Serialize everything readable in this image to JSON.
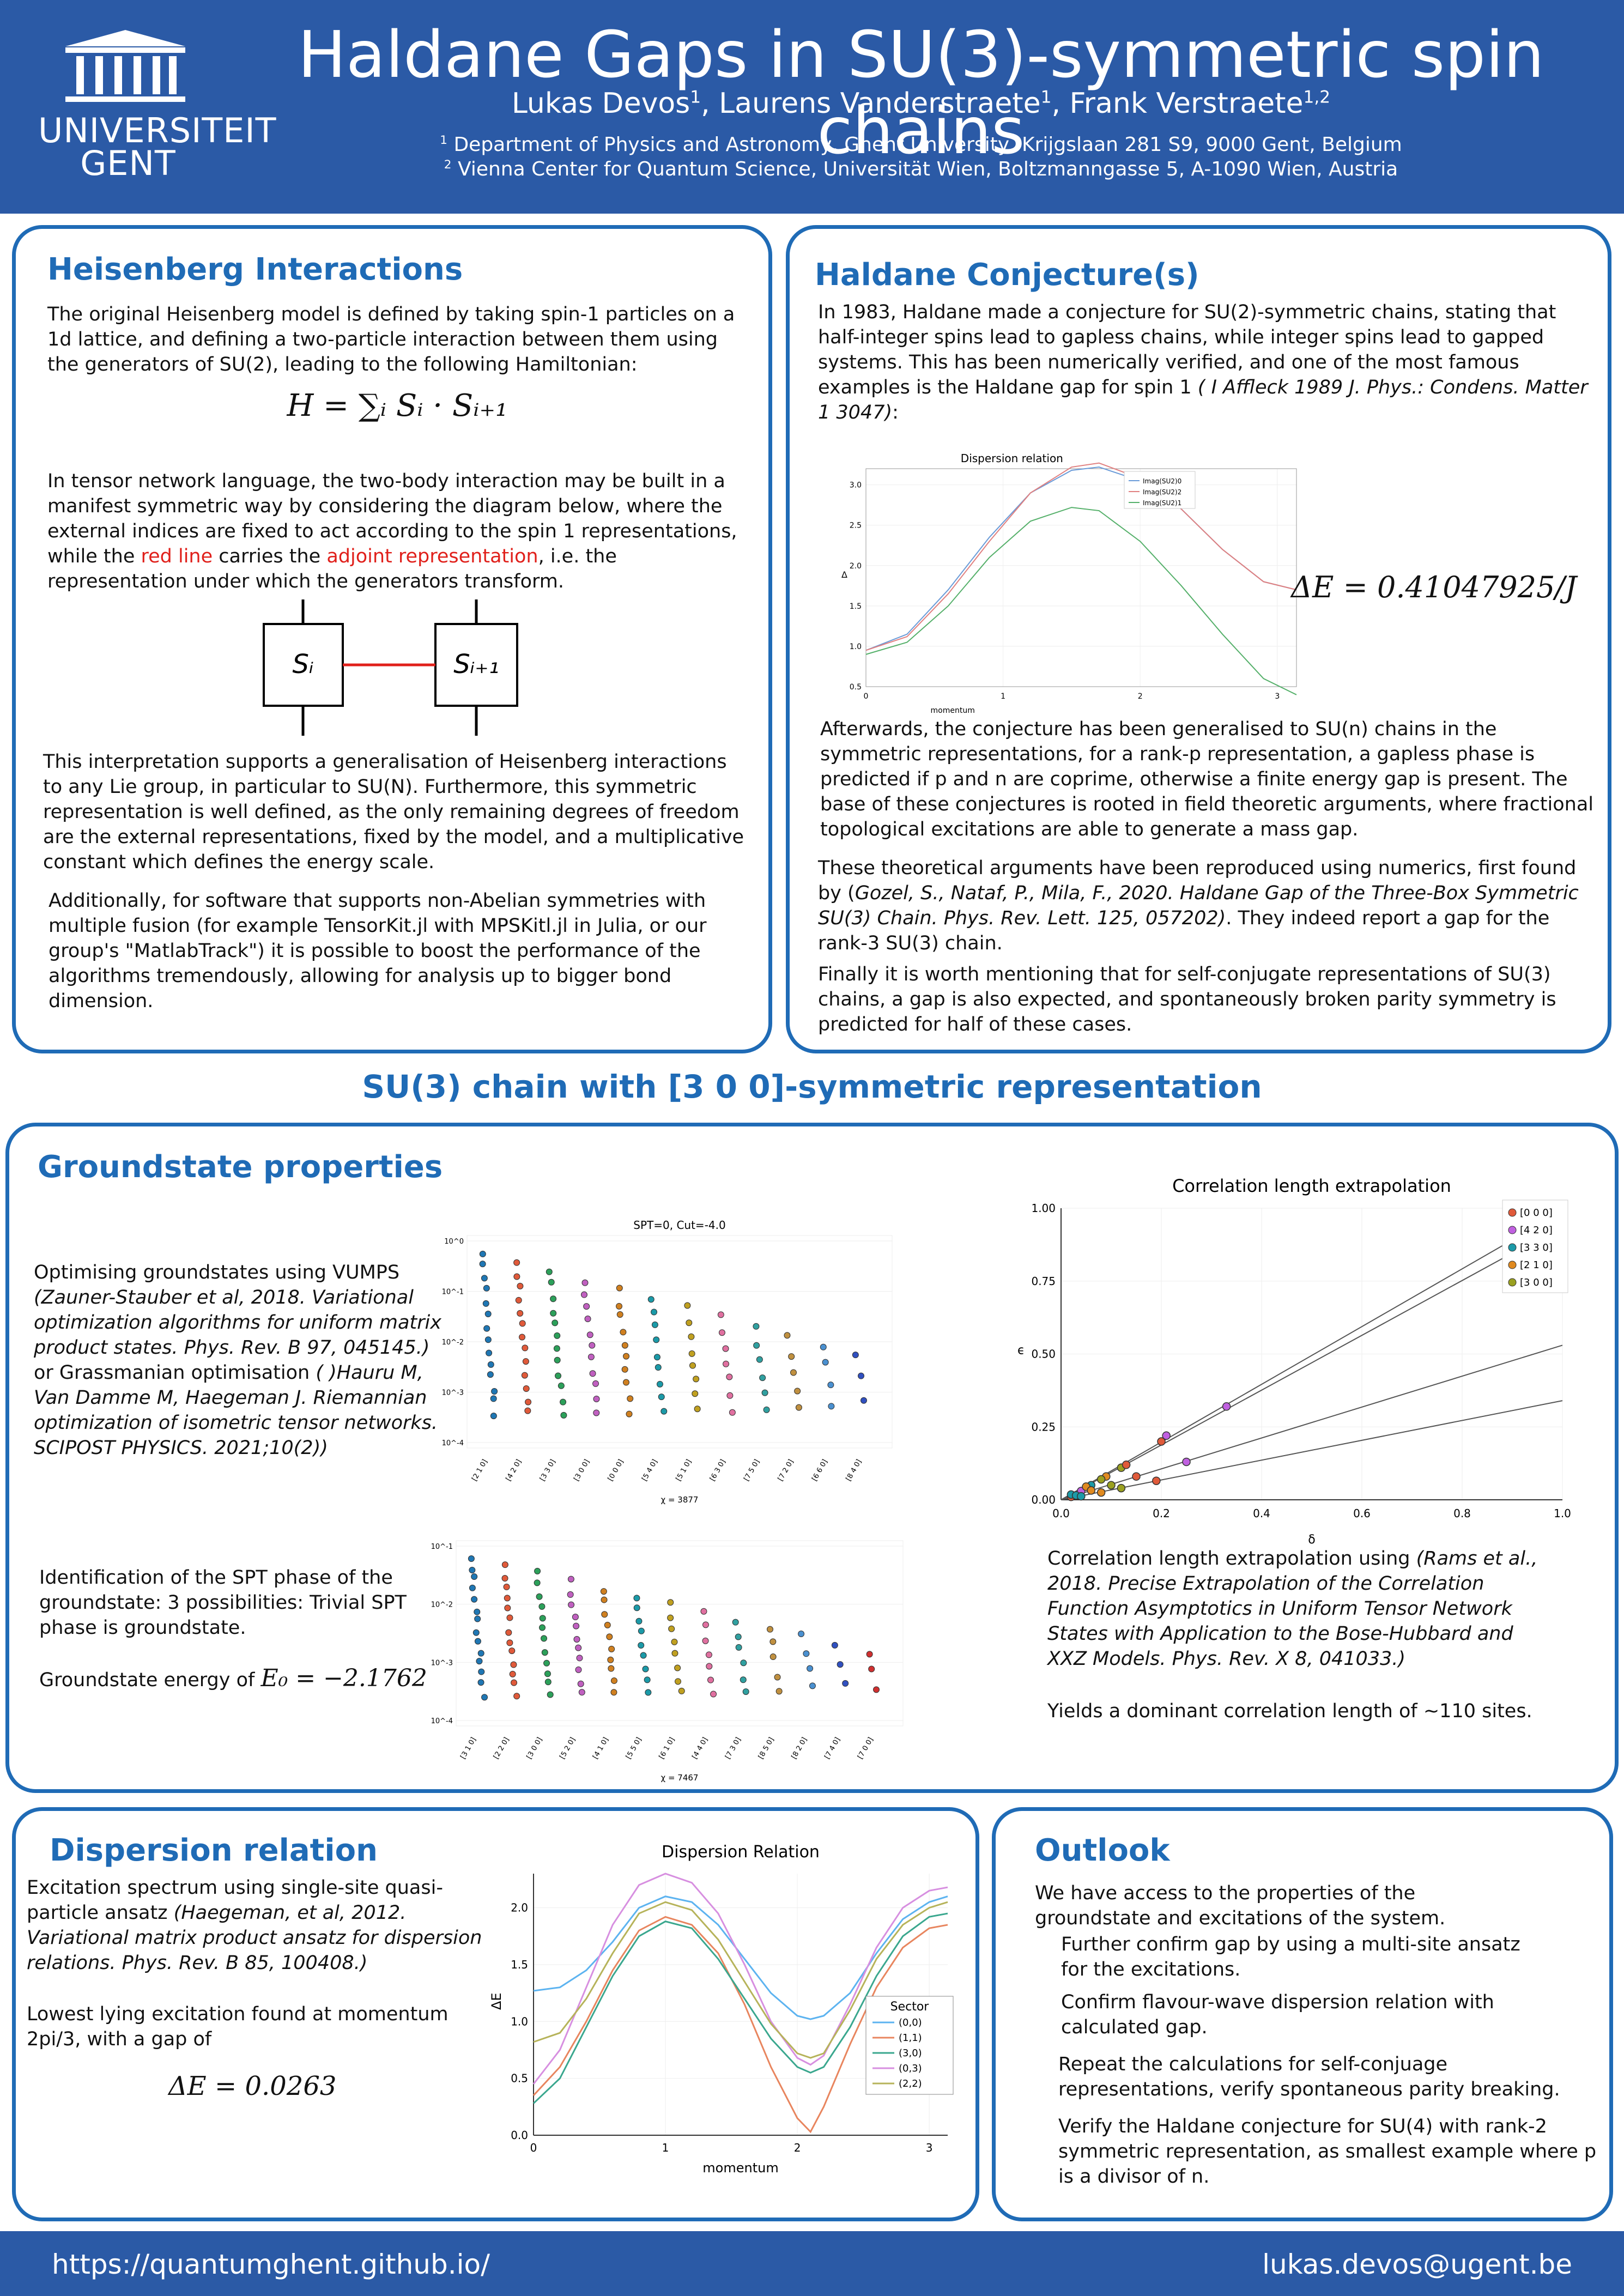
{
  "header": {
    "title": "Haldane Gaps in SU(3)-symmetric spin chains",
    "authors_prefix": "Lukas Devos",
    "sup1": "1",
    "author2": ", Laurens Vanderstraete",
    "sup2": "1",
    "author3": ", Frank Verstraete",
    "sup3": "1,2",
    "affil1_sup": "1",
    "affil1": " Department of Physics and Astronomy, Ghent University, Krijgslaan 281 S9, 9000 Gent, Belgium",
    "affil2_sup": "2",
    "affil2": " Vienna Center for Quantum Science, Universität Wien, Boltzmanngasse 5, A-1090 Wien, Austria",
    "logo_line1": "UNIVERSITEIT",
    "logo_line2": "GENT"
  },
  "heisenberg": {
    "title": "Heisenberg Interactions",
    "p1": "The original Heisenberg model is defined by taking spin-1 particles on a 1d lattice, and defining a two-particle interaction between them using the generators of SU(2), leading to the following Hamiltonian:",
    "equation": "H = ∑ᵢ Sᵢ · Sᵢ₊₁",
    "p2_a": "In tensor network language, the two-body interaction may be built in a manifest symmetric way by considering the diagram below, where the external indices are fixed to act according to the spin 1 representations, while the ",
    "p2_red1": "red line",
    "p2_b": " carries the ",
    "p2_red2": "adjoint representation",
    "p2_c": ", i.e. the representation under which the generators transform.",
    "node_left": "Sᵢ",
    "node_right": "Sᵢ₊₁",
    "p3": "This interpretation supports a generalisation of Heisenberg interactions to any Lie group, in particular to SU(N). Furthermore, this symmetric representation is well defined, as the only remaining degrees of freedom are the external representations, fixed by the model, and a multiplicative constant which defines the energy scale.",
    "p4": "Additionally, for software that supports non-Abelian symmetries with multiple fusion (for example TensorKit.jl with MPSKitl.jl in Julia, or our group's \"MatlabTrack\") it is possible to boost the performance of the algorithms tremendously, allowing for analysis up to bigger bond dimension."
  },
  "haldane": {
    "title": "Haldane Conjecture(s)",
    "p1_a": "In 1983, Haldane made a conjecture for SU(2)-symmetric chains, stating that half-integer spins lead to gapless chains, while integer spins lead to gapped systems. This has been numerically verified, and one of the most famous examples is the Haldane gap for spin 1 ",
    "p1_ref": "( I Affleck 1989 J. Phys.: Condens. Matter 1 3047)",
    "p1_b": ":",
    "gap_eq": "ΔE = 0.41047925/J",
    "p2": "Afterwards, the conjecture has been generalised to SU(n) chains in the symmetric representations, for a rank-p representation, a gapless phase is predicted if p and n are coprime, otherwise a finite energy gap is present. The base of these conjectures is rooted in field theoretic arguments, where fractional topological excitations are able to generate a mass gap.",
    "p3_a": "These theoretical arguments have been reproduced using numerics, first found by (",
    "p3_ref": "Gozel, S., Nataf, P., Mila, F., 2020. Haldane Gap of the Three-Box Symmetric SU(3) Chain. Phys. Rev. Lett. 125, 057202)",
    "p3_b": ". They indeed report a gap for the rank-3 SU(3) chain.",
    "p4": "Finally it is worth mentioning that for self-conjugate representations of SU(3) chains, a gap is also expected, and spontaneously broken parity symmetry is predicted for half of these cases."
  },
  "section_heading": "SU(3) chain with [3 0 0]-symmetric representation",
  "groundstate": {
    "title": "Groundstate properties",
    "p1_a": "Optimising groundstates using VUMPS ",
    "p1_ref1": "(Zauner-Stauber et al, 2018. Variational optimization algorithms for uniform matrix product states. Phys. Rev. B 97, 045145.)",
    "p1_b": " or Grassmanian optimisation ",
    "p1_ref2": "( )Hauru M, Van Damme M, Haegeman J. Riemannian optimization of isometric tensor networks. SCIPOST PHYSICS. 2021;10(2))",
    "p2": "Identification of the SPT phase of the groundstate: 3 possibilities: Trivial SPT phase is groundstate.",
    "p3": "Groundstate energy of ",
    "energy_eq": "E₀ = −2.1762",
    "p4_a": "Correlation length extrapolation using ",
    "p4_ref": "(Rams et al., 2018. Precise Extrapolation of the Correlation Function Asymptotics in Uniform Tensor Network States with Application to the Bose-Hubbard and XXZ Models. Phys. Rev. X 8, 041033.)",
    "p5": "Yields a dominant correlation length of ~110 sites."
  },
  "dispersion": {
    "title": "Dispersion relation",
    "p1_a": "Excitation spectrum using single-site quasi-particle ansatz ",
    "p1_ref": "(Haegeman, et al, 2012. Variational matrix product ansatz for dispersion relations. Phys. Rev. B 85, 100408.)",
    "p2": "Lowest lying excitation found at momentum 2pi/3, with a gap of",
    "gap_eq": "ΔE = 0.0263"
  },
  "outlook": {
    "title": "Outlook",
    "intro": "We have access to the properties of the groundstate and excitations of the system.",
    "items": [
      "Further confirm gap by using a multi-site ansatz for the excitations.",
      "Confirm flavour-wave dispersion relation with calculated gap.",
      "Repeat the calculations for self-conjuage representations, verify spontaneous parity breaking.",
      "Verify the Haldane conjecture for SU(4) with rank-2 symmetric representation, as smallest example where p is a divisor of n."
    ]
  },
  "footer": {
    "url": "https://quantumghent.github.io/",
    "email": "lukas.devos@ugent.be"
  },
  "chart_data": [
    {
      "type": "line",
      "title": "Dispersion relation",
      "xlabel": "momentum",
      "ylabel": "Δ",
      "xlim": [
        0,
        3.14
      ],
      "ylim": [
        0.5,
        3.2
      ],
      "xticks": [
        "0",
        "1",
        "2",
        "3"
      ],
      "yticks": [
        "0.5",
        "1.0",
        "1.5",
        "2.0",
        "2.5",
        "3.0"
      ],
      "series": [
        {
          "name": "Imag(SU2)0",
          "x": [
            0,
            0.3,
            0.6,
            0.9,
            1.2,
            1.5,
            1.7,
            2.0,
            2.3,
            2.6,
            2.9,
            3.14
          ],
          "y": [
            0.95,
            1.15,
            1.7,
            2.35,
            2.9,
            3.18,
            3.22,
            3.05,
            2.7,
            2.2,
            1.8,
            1.7
          ]
        },
        {
          "name": "Imag(SU2)2",
          "x": [
            0,
            0.3,
            0.6,
            0.9,
            1.2,
            1.5,
            1.7,
            2.0,
            2.3,
            2.6,
            2.9,
            3.14
          ],
          "y": [
            0.95,
            1.12,
            1.65,
            2.3,
            2.9,
            3.22,
            3.27,
            3.08,
            2.7,
            2.2,
            1.8,
            1.7
          ]
        },
        {
          "name": "Imag(SU2)1",
          "x": [
            0,
            0.3,
            0.6,
            0.9,
            1.2,
            1.5,
            1.7,
            2.0,
            2.3,
            2.6,
            2.9,
            3.14
          ],
          "y": [
            0.9,
            1.05,
            1.5,
            2.1,
            2.55,
            2.72,
            2.68,
            2.3,
            1.75,
            1.15,
            0.6,
            0.4
          ]
        }
      ]
    },
    {
      "type": "scatter",
      "title": "SPT=0, Cut=-4.0",
      "xlabel": "χ = 3877",
      "categories": [
        "[2 1 0]",
        "[4 2 0]",
        "[3 3 0]",
        "[3 0 0]",
        "[0 0 0]",
        "[5 4 0]",
        "[5 1 0]",
        "[6 3 0]",
        "[7 5 0]",
        "[7 2 0]",
        "[6 6 0]",
        "[8 4 0]"
      ],
      "yticks": [
        "10^0",
        "10^-1",
        "10^-2",
        "10^-3",
        "10^-4"
      ]
    },
    {
      "type": "scatter",
      "xlabel": "χ = 7467",
      "categories": [
        "[3 1 0]",
        "[2 2 0]",
        "[3 0 0]",
        "[5 2 0]",
        "[4 1 0]",
        "[5 5 0]",
        "[6 1 0]",
        "[4 4 0]",
        "[7 3 0]",
        "[8 5 0]",
        "[8 2 0]",
        "[7 4 0]",
        "[7 0 0]"
      ],
      "yticks": [
        "10^-1",
        "10^-2",
        "10^-3",
        "10^-4"
      ]
    },
    {
      "type": "scatter",
      "title": "Correlation length extrapolation",
      "xlabel": "δ",
      "ylabel": "ϵ",
      "xlim": [
        0,
        1.0
      ],
      "ylim": [
        0,
        1.0
      ],
      "xticks": [
        "0.0",
        "0.2",
        "0.4",
        "0.6",
        "0.8",
        "1.0"
      ],
      "yticks": [
        "0.00",
        "0.25",
        "0.50",
        "0.75",
        "1.00"
      ],
      "legend": [
        "[0 0 0]",
        "[4 2 0]",
        "[3 3 0]",
        "[2 1 0]",
        "[3 0 0]"
      ],
      "lines": [
        {
          "slope": 0.99,
          "intercept": 0.0
        },
        {
          "slope": 0.94,
          "intercept": 0.0
        },
        {
          "slope": 0.53,
          "intercept": 0.0
        },
        {
          "slope": 0.34,
          "intercept": 0.0
        }
      ]
    },
    {
      "type": "line",
      "title": "Dispersion Relation",
      "xlabel": "momentum",
      "ylabel": "ΔE",
      "xlim": [
        0,
        3.14
      ],
      "ylim": [
        0,
        2.3
      ],
      "xticks": [
        "0",
        "1",
        "2",
        "3"
      ],
      "yticks": [
        "0.0",
        "0.5",
        "1.0",
        "1.5",
        "2.0"
      ],
      "legend_title": "Sector",
      "series": [
        {
          "name": "(0,0)",
          "color": "#5cb3f0",
          "x": [
            0,
            0.2,
            0.4,
            0.6,
            0.8,
            1.0,
            1.2,
            1.4,
            1.6,
            1.8,
            2.0,
            2.1,
            2.2,
            2.4,
            2.6,
            2.8,
            3.0,
            3.14
          ],
          "y": [
            1.27,
            1.3,
            1.45,
            1.7,
            2.0,
            2.1,
            2.05,
            1.85,
            1.55,
            1.25,
            1.05,
            1.02,
            1.05,
            1.25,
            1.6,
            1.9,
            2.05,
            2.1
          ]
        },
        {
          "name": "(1,1)",
          "color": "#e8855e",
          "x": [
            0,
            0.2,
            0.4,
            0.6,
            0.8,
            1.0,
            1.2,
            1.4,
            1.6,
            1.8,
            2.0,
            2.1,
            2.2,
            2.4,
            2.6,
            2.8,
            3.0,
            3.14
          ],
          "y": [
            0.35,
            0.6,
            1.0,
            1.45,
            1.8,
            1.92,
            1.85,
            1.6,
            1.15,
            0.6,
            0.15,
            0.03,
            0.25,
            0.8,
            1.3,
            1.65,
            1.82,
            1.85
          ]
        },
        {
          "name": "(3,0)",
          "color": "#3aa78e",
          "x": [
            0,
            0.2,
            0.4,
            0.6,
            0.8,
            1.0,
            1.2,
            1.4,
            1.6,
            1.8,
            2.0,
            2.1,
            2.2,
            2.4,
            2.6,
            2.8,
            3.0,
            3.14
          ],
          "y": [
            0.28,
            0.5,
            0.95,
            1.4,
            1.75,
            1.88,
            1.82,
            1.55,
            1.2,
            0.85,
            0.6,
            0.55,
            0.6,
            0.95,
            1.4,
            1.75,
            1.92,
            1.95
          ]
        },
        {
          "name": "(0,3)",
          "color": "#d78fe0",
          "x": [
            0,
            0.2,
            0.4,
            0.6,
            0.8,
            1.0,
            1.2,
            1.4,
            1.6,
            1.8,
            2.0,
            2.1,
            2.2,
            2.4,
            2.6,
            2.8,
            3.0,
            3.14
          ],
          "y": [
            0.45,
            0.75,
            1.3,
            1.85,
            2.2,
            2.3,
            2.22,
            1.95,
            1.5,
            1.0,
            0.68,
            0.62,
            0.7,
            1.15,
            1.65,
            2.0,
            2.15,
            2.18
          ]
        },
        {
          "name": "(2,2)",
          "color": "#b6b35a",
          "x": [
            0,
            0.2,
            0.4,
            0.6,
            0.8,
            1.0,
            1.2,
            1.4,
            1.6,
            1.8,
            2.0,
            2.1,
            2.2,
            2.4,
            2.6,
            2.8,
            3.0,
            3.14
          ],
          "y": [
            0.82,
            0.9,
            1.2,
            1.6,
            1.95,
            2.05,
            1.98,
            1.72,
            1.35,
            0.98,
            0.72,
            0.68,
            0.72,
            1.1,
            1.55,
            1.85,
            2.0,
            2.05
          ]
        }
      ]
    }
  ]
}
